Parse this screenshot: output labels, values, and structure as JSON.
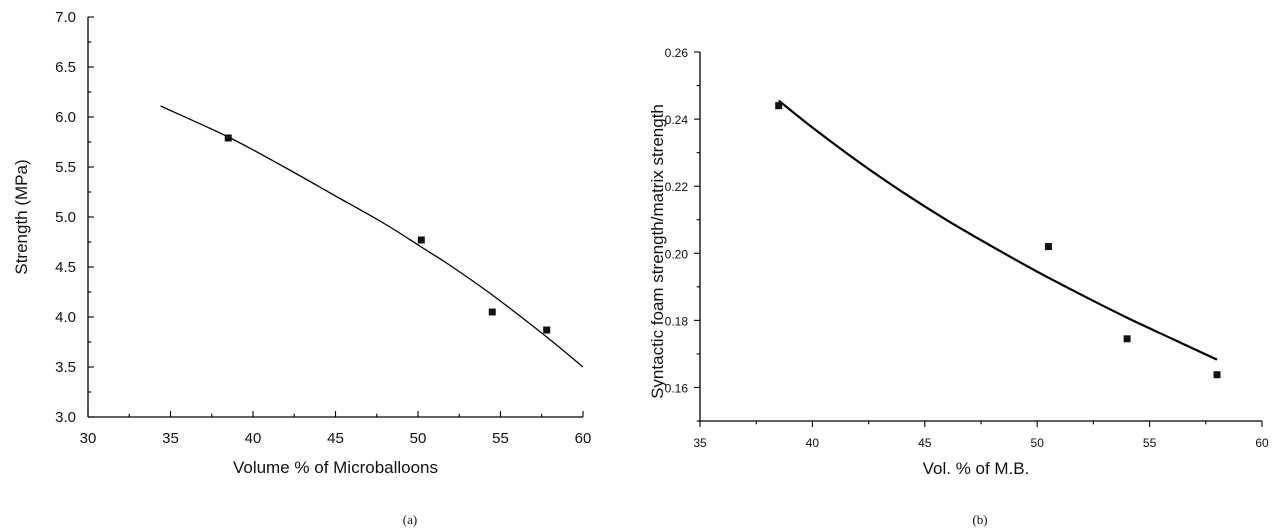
{
  "chart_data": [
    {
      "type": "scatter",
      "panel_label": "(a)",
      "xlabel": "Volume % of Microballoons",
      "ylabel": "Strength (MPa)",
      "xlim": [
        30,
        60
      ],
      "ylim": [
        3.0,
        7.0
      ],
      "xticks": [
        "30",
        "35",
        "40",
        "45",
        "50",
        "55",
        "60"
      ],
      "yticks": [
        "3.0",
        "3.5",
        "4.0",
        "4.5",
        "5.0",
        "5.5",
        "6.0",
        "6.5",
        "7.0"
      ],
      "grid": false,
      "series": [
        {
          "x": [
            38.5,
            50.2,
            54.5,
            57.8
          ],
          "y": [
            5.79,
            4.77,
            4.05,
            3.87
          ]
        }
      ],
      "fit_curve": {
        "x": [
          34.4,
          38.5,
          42,
          45,
          48,
          50.2,
          52,
          54.5,
          57.8,
          60
        ],
        "y": [
          6.11,
          5.8,
          5.49,
          5.21,
          4.93,
          4.7,
          4.51,
          4.22,
          3.8,
          3.5
        ]
      }
    },
    {
      "type": "scatter",
      "panel_label": "(b)",
      "xlabel": "Vol. % of M.B.",
      "ylabel": "Syntactic foam strength/matrix strength",
      "xlim": [
        35,
        60
      ],
      "ylim": [
        0.15,
        0.26
      ],
      "xticks": [
        "35",
        "40",
        "45",
        "50",
        "55",
        "60"
      ],
      "yticks": [
        "0.16",
        "0.18",
        "0.20",
        "0.22",
        "0.24",
        "0.26"
      ],
      "grid": false,
      "series": [
        {
          "x": [
            38.5,
            50.5,
            54.0,
            58.0
          ],
          "y": [
            0.244,
            0.202,
            0.1745,
            0.1638
          ]
        }
      ],
      "fit_curve": {
        "x": [
          38.5,
          40,
          42,
          44,
          46,
          48,
          50,
          52,
          54,
          56,
          58
        ],
        "y": [
          0.2455,
          0.2375,
          0.2275,
          0.2183,
          0.2098,
          0.202,
          0.1945,
          0.1875,
          0.1808,
          0.1745,
          0.1683
        ]
      }
    }
  ]
}
